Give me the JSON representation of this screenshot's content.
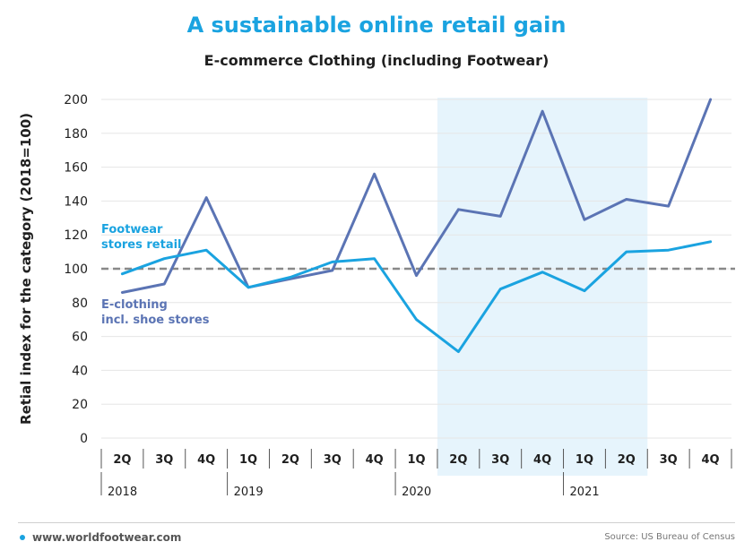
{
  "header": {
    "title": "A sustainable online retail gain",
    "subtitle": "E-commerce Clothing (including Footwear)"
  },
  "footer": {
    "site": "www.worldfootwear.com",
    "source": "Source: US Bureau of Census"
  },
  "colors": {
    "footwear": "#1aa3e0",
    "eclothing": "#5b74b4",
    "highlight": "#e6f4fc",
    "reference": "#888888"
  },
  "chart_data": {
    "type": "line",
    "ylabel": "Retial index for the category (2018=100)",
    "ylim": [
      0,
      200
    ],
    "yticks": [
      0,
      20,
      40,
      60,
      80,
      100,
      120,
      140,
      160,
      180,
      200
    ],
    "categories": [
      "2Q",
      "3Q",
      "4Q",
      "1Q",
      "2Q",
      "3Q",
      "4Q",
      "1Q",
      "2Q",
      "3Q",
      "4Q",
      "1Q",
      "2Q",
      "3Q",
      "4Q"
    ],
    "years": [
      {
        "label": "2018",
        "start_index": 0
      },
      {
        "label": "2019",
        "start_index": 3
      },
      {
        "label": "2020",
        "start_index": 7
      },
      {
        "label": "2021",
        "start_index": 11
      }
    ],
    "reference_line": 100,
    "highlight_range": [
      8,
      12
    ],
    "series": [
      {
        "name": "E-clothing incl. shoe stores",
        "label_lines": [
          "E-clothing",
          "incl. shoe stores"
        ],
        "values": [
          86,
          91,
          142,
          89,
          94,
          99,
          156,
          96,
          135,
          131,
          193,
          129,
          141,
          137,
          200
        ]
      },
      {
        "name": "Footwear stores retail",
        "label_lines": [
          "Footwear",
          "stores retail"
        ],
        "values": [
          97,
          106,
          111,
          89,
          95,
          104,
          106,
          70,
          51,
          88,
          98,
          87,
          110,
          111,
          116
        ]
      }
    ]
  }
}
